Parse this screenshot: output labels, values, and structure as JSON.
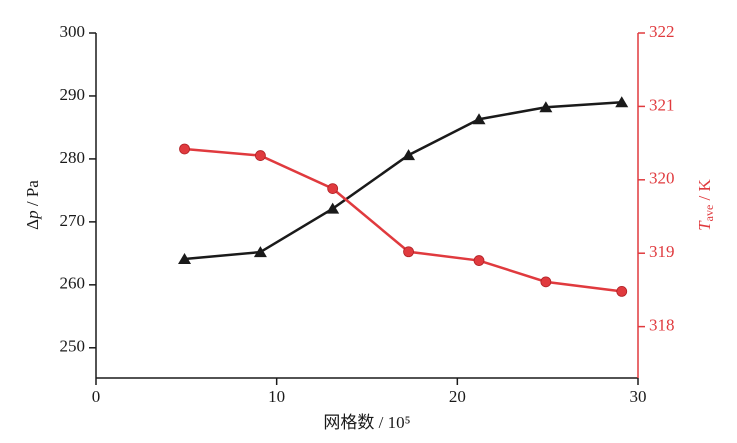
{
  "chart_data": {
    "type": "line",
    "x_label": "网格数 / 10⁵",
    "y_label": {
      "pre": "Δ",
      "var": "p",
      "unit": " / Pa"
    },
    "y2_label": {
      "var": "T",
      "sub": "ave",
      "unit": " / K"
    },
    "x": [
      4.9,
      9.1,
      13.1,
      17.3,
      21.2,
      24.9,
      29.1
    ],
    "series": [
      {
        "color": "#1a1a1a",
        "marker": "triangle",
        "values": [
          264.1,
          265.2,
          272.1,
          280.6,
          286.3,
          288.2,
          289.0
        ]
      },
      {
        "color": "#e03a3e",
        "marker": "circle",
        "axis": "y2",
        "values": [
          320.42,
          320.33,
          319.88,
          319.02,
          318.9,
          318.61,
          318.48
        ]
      }
    ],
    "xlim": [
      0,
      30
    ],
    "xticks": [
      0,
      10,
      20,
      30
    ],
    "ylim": [
      245.2,
      300
    ],
    "yticks": [
      250,
      260,
      270,
      280,
      290,
      300
    ],
    "y2lim": [
      317.3,
      322
    ],
    "y2ticks": [
      318,
      319,
      320,
      321,
      322
    ],
    "y2color": "#e03a3e"
  }
}
